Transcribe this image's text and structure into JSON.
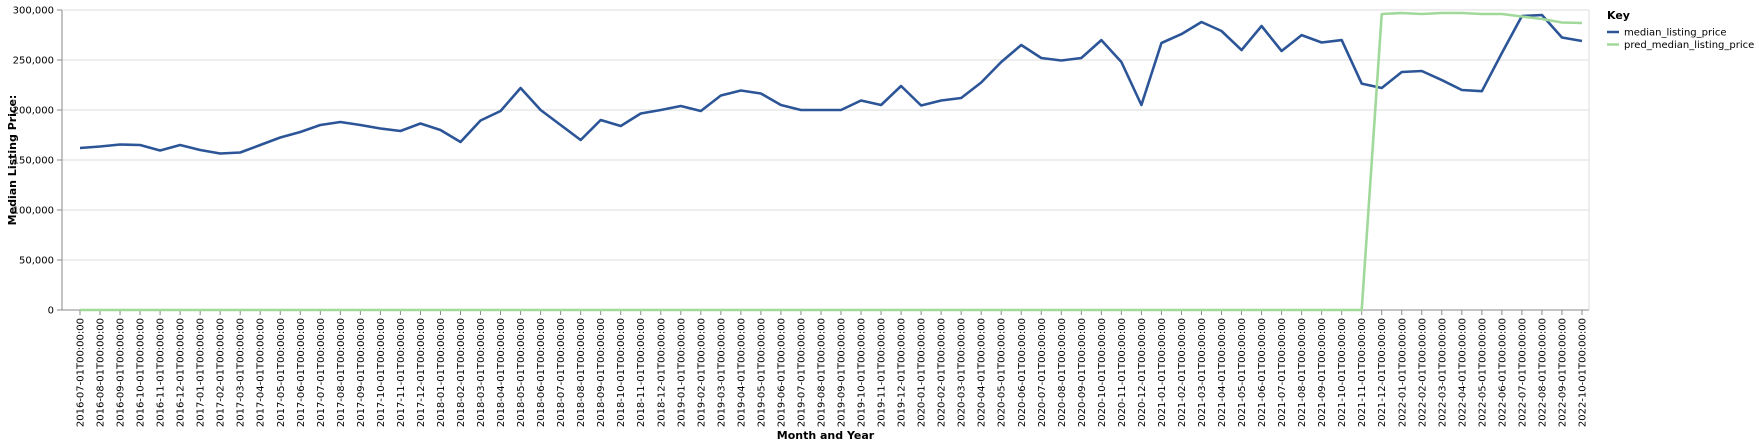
{
  "chart_data": {
    "type": "line",
    "xlabel": "Month and Year",
    "ylabel": "Median Listing Price:",
    "ylim": [
      0,
      300000
    ],
    "yticks": [
      "0",
      "50,000",
      "100,000",
      "150,000",
      "200,000",
      "250,000",
      "300,000"
    ],
    "ytick_values": [
      0,
      50000,
      100000,
      150000,
      200000,
      250000,
      300000
    ],
    "grid": true,
    "legend": {
      "title": "Key",
      "position": "right"
    },
    "x": [
      "2016-07-01T00:00:00",
      "2016-08-01T00:00:00",
      "2016-09-01T00:00:00",
      "2016-10-01T00:00:00",
      "2016-11-01T00:00:00",
      "2016-12-01T00:00:00",
      "2017-01-01T00:00:00",
      "2017-02-01T00:00:00",
      "2017-03-01T00:00:00",
      "2017-04-01T00:00:00",
      "2017-05-01T00:00:00",
      "2017-06-01T00:00:00",
      "2017-07-01T00:00:00",
      "2017-08-01T00:00:00",
      "2017-09-01T00:00:00",
      "2017-10-01T00:00:00",
      "2017-11-01T00:00:00",
      "2017-12-01T00:00:00",
      "2018-01-01T00:00:00",
      "2018-02-01T00:00:00",
      "2018-03-01T00:00:00",
      "2018-04-01T00:00:00",
      "2018-05-01T00:00:00",
      "2018-06-01T00:00:00",
      "2018-07-01T00:00:00",
      "2018-08-01T00:00:00",
      "2018-09-01T00:00:00",
      "2018-10-01T00:00:00",
      "2018-11-01T00:00:00",
      "2018-12-01T00:00:00",
      "2019-01-01T00:00:00",
      "2019-02-01T00:00:00",
      "2019-03-01T00:00:00",
      "2019-04-01T00:00:00",
      "2019-05-01T00:00:00",
      "2019-06-01T00:00:00",
      "2019-07-01T00:00:00",
      "2019-08-01T00:00:00",
      "2019-09-01T00:00:00",
      "2019-10-01T00:00:00",
      "2019-11-01T00:00:00",
      "2019-12-01T00:00:00",
      "2020-01-01T00:00:00",
      "2020-02-01T00:00:00",
      "2020-03-01T00:00:00",
      "2020-04-01T00:00:00",
      "2020-05-01T00:00:00",
      "2020-06-01T00:00:00",
      "2020-07-01T00:00:00",
      "2020-08-01T00:00:00",
      "2020-09-01T00:00:00",
      "2020-10-01T00:00:00",
      "2020-11-01T00:00:00",
      "2020-12-01T00:00:00",
      "2021-01-01T00:00:00",
      "2021-02-01T00:00:00",
      "2021-03-01T00:00:00",
      "2021-04-01T00:00:00",
      "2021-05-01T00:00:00",
      "2021-06-01T00:00:00",
      "2021-07-01T00:00:00",
      "2021-08-01T00:00:00",
      "2021-09-01T00:00:00",
      "2021-10-01T00:00:00",
      "2021-11-01T00:00:00",
      "2021-12-01T00:00:00",
      "2022-01-01T00:00:00",
      "2022-02-01T00:00:00",
      "2022-03-01T00:00:00",
      "2022-04-01T00:00:00",
      "2022-05-01T00:00:00",
      "2022-06-01T00:00:00",
      "2022-07-01T00:00:00",
      "2022-08-01T00:00:00",
      "2022-09-01T00:00:00",
      "2022-10-01T00:00:00"
    ],
    "series": [
      {
        "name": "median_listing_price",
        "color": "#2c5597",
        "values": [
          162000,
          163500,
          165500,
          165000,
          159500,
          165000,
          160000,
          156500,
          157500,
          165000,
          172500,
          178000,
          185000,
          188000,
          185000,
          181500,
          179000,
          186500,
          180000,
          168000,
          189500,
          199000,
          222000,
          200000,
          185000,
          170000,
          190000,
          184000,
          196500,
          200000,
          204000,
          199000,
          214500,
          219500,
          216500,
          205000,
          200000,
          200000,
          200000,
          209500,
          205000,
          224000,
          204500,
          209500,
          212000,
          227500,
          248000,
          265000,
          252000,
          249500,
          252000,
          269900,
          248000,
          205000,
          267000,
          275900,
          288000,
          279000,
          259900,
          284000,
          259000,
          274900,
          267500,
          269900,
          226400,
          222000,
          238000,
          239000,
          229900,
          220000,
          218800,
          257000,
          294000,
          295000,
          272500,
          269000
        ]
      },
      {
        "name": "pred_median_listing_price",
        "color": "#a1d99b",
        "values": [
          0,
          0,
          0,
          0,
          0,
          0,
          0,
          0,
          0,
          0,
          0,
          0,
          0,
          0,
          0,
          0,
          0,
          0,
          0,
          0,
          0,
          0,
          0,
          0,
          0,
          0,
          0,
          0,
          0,
          0,
          0,
          0,
          0,
          0,
          0,
          0,
          0,
          0,
          0,
          0,
          0,
          0,
          0,
          0,
          0,
          0,
          0,
          0,
          0,
          0,
          0,
          0,
          0,
          0,
          0,
          0,
          0,
          0,
          0,
          0,
          0,
          0,
          0,
          0,
          0,
          296000,
          297000,
          296000,
          297000,
          297000,
          296000,
          296000,
          293500,
          291000,
          287500,
          287000
        ]
      }
    ]
  }
}
